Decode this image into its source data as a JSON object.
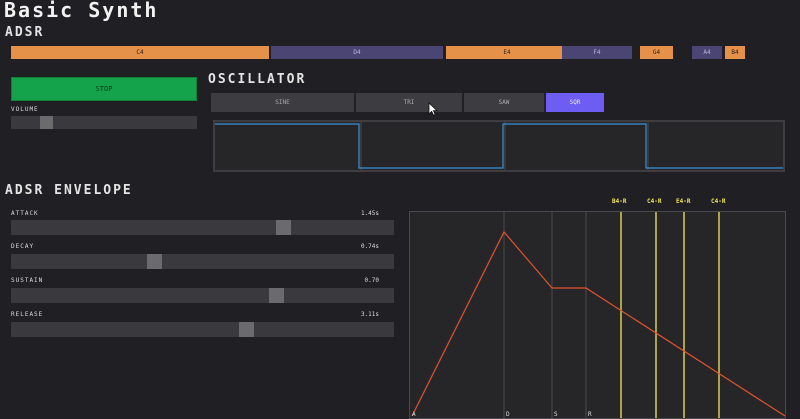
{
  "app": {
    "title": "Basic Synth"
  },
  "keyboard": {
    "label": "ADSR",
    "notes": [
      {
        "label": "C4",
        "active": true
      },
      {
        "label": "D4",
        "active": false
      },
      {
        "label": "E4",
        "active": true
      },
      {
        "label": "F4",
        "active": false
      },
      {
        "label": "G4",
        "active": true
      },
      {
        "label": "A4",
        "active": false
      },
      {
        "label": "B4",
        "active": true
      }
    ],
    "colors": {
      "active": "#e6914a",
      "inactive": "#4b4574"
    }
  },
  "transport": {
    "stop_label": "STOP"
  },
  "volume": {
    "label": "VOLUME",
    "value": 0.17
  },
  "oscillator": {
    "title": "OSCILLATOR",
    "waveforms": [
      {
        "label": "SINE",
        "active": false
      },
      {
        "label": "TRI",
        "active": false
      },
      {
        "label": "SAW",
        "active": false
      },
      {
        "label": "SQR",
        "active": true
      }
    ],
    "accent": "#6d5df2",
    "wave_color": "#3a8fd6"
  },
  "envelope": {
    "title": "ADSR ENVELOPE",
    "params": [
      {
        "key": "attack",
        "label": "ATTACK",
        "value_text": "1.45s",
        "position": 0.72
      },
      {
        "key": "decay",
        "label": "DECAY",
        "value_text": "0.74s",
        "position": 0.37
      },
      {
        "key": "sustain",
        "label": "SUSTAIN",
        "value_text": "0.70",
        "position": 0.7
      },
      {
        "key": "release",
        "label": "RELEASE",
        "value_text": "3.11s",
        "position": 0.62
      }
    ],
    "graph": {
      "stage_labels": [
        "A",
        "D",
        "S",
        "R"
      ],
      "release_markers": [
        "B4-R",
        "C4-R",
        "E4-R",
        "C4-R"
      ],
      "curve_color": "#e0532f",
      "marker_color": "#f3e857"
    }
  }
}
